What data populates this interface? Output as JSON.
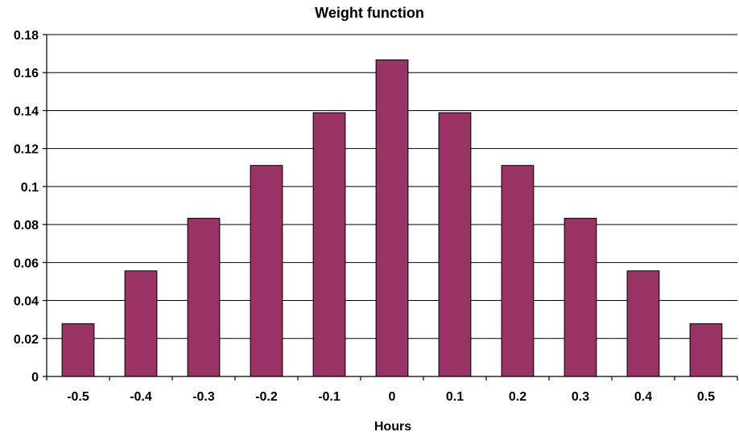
{
  "chart_data": {
    "type": "bar",
    "title": "Weight function",
    "xlabel": "Hours",
    "ylabel": "",
    "categories": [
      "-0.5",
      "-0.4",
      "-0.3",
      "-0.2",
      "-0.1",
      "0",
      "0.1",
      "0.2",
      "0.3",
      "0.4",
      "0.5"
    ],
    "values": [
      0.0278,
      0.0556,
      0.0833,
      0.1111,
      0.1389,
      0.1667,
      0.1389,
      0.1111,
      0.0833,
      0.0556,
      0.0278
    ],
    "ylim": [
      0,
      0.18
    ],
    "yticks": [
      "0",
      "0.02",
      "0.04",
      "0.06",
      "0.08",
      "0.1",
      "0.12",
      "0.14",
      "0.16",
      "0.18"
    ],
    "grid": true,
    "legend": "none",
    "bar_color": "#993366"
  }
}
